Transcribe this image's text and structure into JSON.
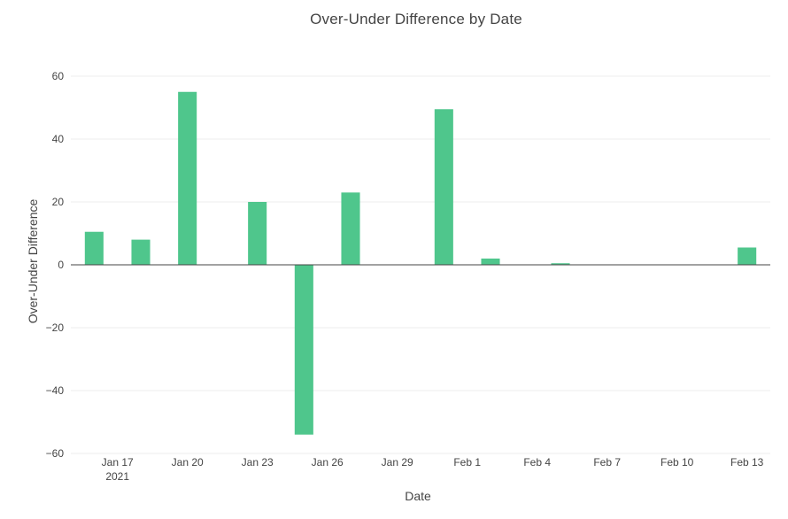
{
  "chart_data": {
    "type": "bar",
    "title": "Over-Under Difference by Date",
    "xlabel": "Date",
    "ylabel": "Over-Under Difference",
    "bar_color": "#4fc68c",
    "grid_color": "#eeeeee",
    "zero_line_color": "#444444",
    "grid": true,
    "ylim": [
      -60,
      60
    ],
    "xlim": [
      "2021-01-15",
      "2021-02-14"
    ],
    "y_ticks": [
      {
        "value": 60,
        "label": "60"
      },
      {
        "value": 40,
        "label": "40"
      },
      {
        "value": 20,
        "label": "20"
      },
      {
        "value": 0,
        "label": "0"
      },
      {
        "value": -20,
        "label": "−20"
      },
      {
        "value": -40,
        "label": "−40"
      },
      {
        "value": -60,
        "label": "−60"
      }
    ],
    "x_ticks": [
      {
        "date": "2021-01-17",
        "label": "Jan 17",
        "sublabel": "2021"
      },
      {
        "date": "2021-01-20",
        "label": "Jan 20"
      },
      {
        "date": "2021-01-23",
        "label": "Jan 23"
      },
      {
        "date": "2021-01-26",
        "label": "Jan 26"
      },
      {
        "date": "2021-01-29",
        "label": "Jan 29"
      },
      {
        "date": "2021-02-01",
        "label": "Feb 1"
      },
      {
        "date": "2021-02-04",
        "label": "Feb 4"
      },
      {
        "date": "2021-02-07",
        "label": "Feb 7"
      },
      {
        "date": "2021-02-10",
        "label": "Feb 10"
      },
      {
        "date": "2021-02-13",
        "label": "Feb 13"
      }
    ],
    "points": [
      {
        "date": "2021-01-16",
        "value": 10.5
      },
      {
        "date": "2021-01-18",
        "value": 8
      },
      {
        "date": "2021-01-20",
        "value": 55
      },
      {
        "date": "2021-01-23",
        "value": 20
      },
      {
        "date": "2021-01-25",
        "value": -54
      },
      {
        "date": "2021-01-27",
        "value": 23
      },
      {
        "date": "2021-01-31",
        "value": 49.5
      },
      {
        "date": "2021-02-02",
        "value": 2
      },
      {
        "date": "2021-02-05",
        "value": 0.5
      },
      {
        "date": "2021-02-13",
        "value": 5.5
      }
    ]
  }
}
